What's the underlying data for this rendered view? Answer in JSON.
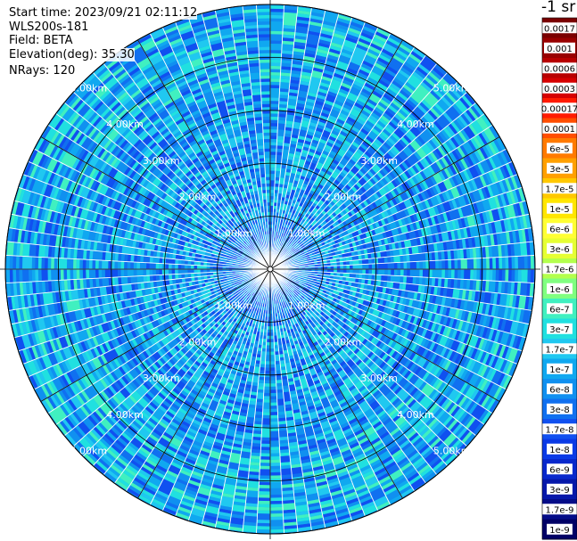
{
  "info": {
    "start_time": "Start time: 2023/09/21 02:11:12",
    "station": "WLS200s-181",
    "field": "Field: BETA",
    "elevation": "Elevation(deg): 35.30",
    "nrays": "NRays: 120"
  },
  "unit_label": "-1 sr",
  "chart_data": {
    "type": "heatmap",
    "projection": "polar-ppi",
    "range_rings_km": [
      1,
      2,
      3,
      4,
      5
    ],
    "ring_labels": [
      "1.00km",
      "2.00km",
      "3.00km",
      "4.00km",
      "5.00km"
    ],
    "max_range_km": 5.0,
    "n_rays": 120,
    "spoke_angles_deg": [
      0,
      30,
      60,
      90,
      120,
      150,
      180,
      210,
      240,
      270,
      300,
      330
    ],
    "colorbar": {
      "scale": "log",
      "labels": [
        "0.0017",
        "0.001",
        "0.0006",
        "0.0003",
        "0.00017",
        "0.0001",
        "6e-5",
        "3e-5",
        "1.7e-5",
        "1e-5",
        "6e-6",
        "3e-6",
        "1.7e-6",
        "1e-6",
        "6e-7",
        "3e-7",
        "1.7e-7",
        "1e-7",
        "6e-8",
        "3e-8",
        "1.7e-8",
        "1e-8",
        "6e-9",
        "3e-9",
        "1.7e-9",
        "1e-9"
      ],
      "colors": [
        "#7a0000",
        "#990000",
        "#b80000",
        "#d60000",
        "#ff1a00",
        "#ff4d00",
        "#ff7a00",
        "#ffa000",
        "#ffc800",
        "#ffe600",
        "#ffff33",
        "#e6ff33",
        "#b3ff4d",
        "#80ff80",
        "#40f0c0",
        "#20e0e0",
        "#20c8f0",
        "#10a8f0",
        "#1090f0",
        "#1070f0",
        "#1050f0",
        "#0a3ae6",
        "#0828cc",
        "#0618aa",
        "#040c88",
        "#000066"
      ]
    },
    "field_levels": [
      "3e-8",
      "1.7e-8",
      "1e-8",
      "6e-9"
    ]
  }
}
